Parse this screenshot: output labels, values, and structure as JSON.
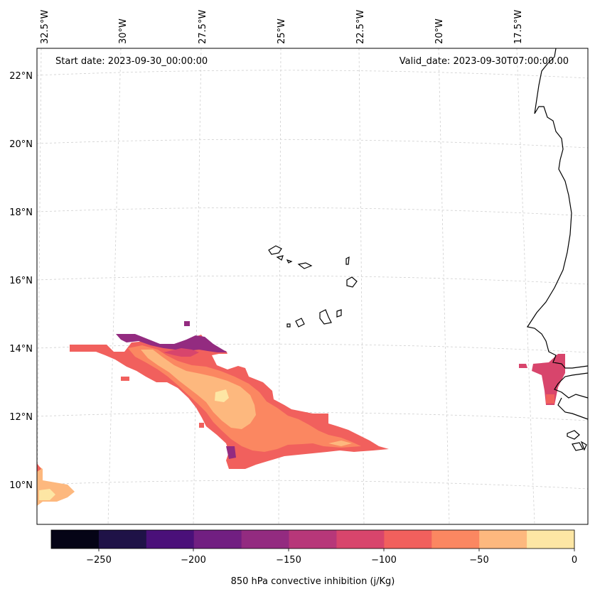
{
  "map": {
    "start_label": "Start date: 2023-09-30_00:00:00",
    "valid_label": "Valid_date: 2023-09-30T07:00:00.00",
    "lon_labels": [
      "32.5°W",
      "30°W",
      "27.5°W",
      "25°W",
      "22.5°W",
      "20°W",
      "17.5°W"
    ],
    "lat_labels": [
      "22°N",
      "20°N",
      "18°N",
      "16°N",
      "14°N",
      "12°N",
      "10°N"
    ]
  },
  "colorbar": {
    "title": "850 hPa convective inhibition (j/Kg)",
    "tick_labels": [
      "−250",
      "−200",
      "−150",
      "−100",
      "−50",
      "0"
    ],
    "levels": [
      -275,
      -250,
      -225,
      -200,
      -175,
      -150,
      -125,
      -100,
      -75,
      -50,
      -25,
      0
    ],
    "colors": [
      "#050416",
      "#1f1247",
      "#4a1079",
      "#711f81",
      "#932b80",
      "#b73779",
      "#d8456c",
      "#f1605d",
      "#fb8761",
      "#fdb87e",
      "#fde6a4"
    ]
  },
  "style": {
    "coastline": "#000000",
    "grid": "#d0d0d0"
  }
}
